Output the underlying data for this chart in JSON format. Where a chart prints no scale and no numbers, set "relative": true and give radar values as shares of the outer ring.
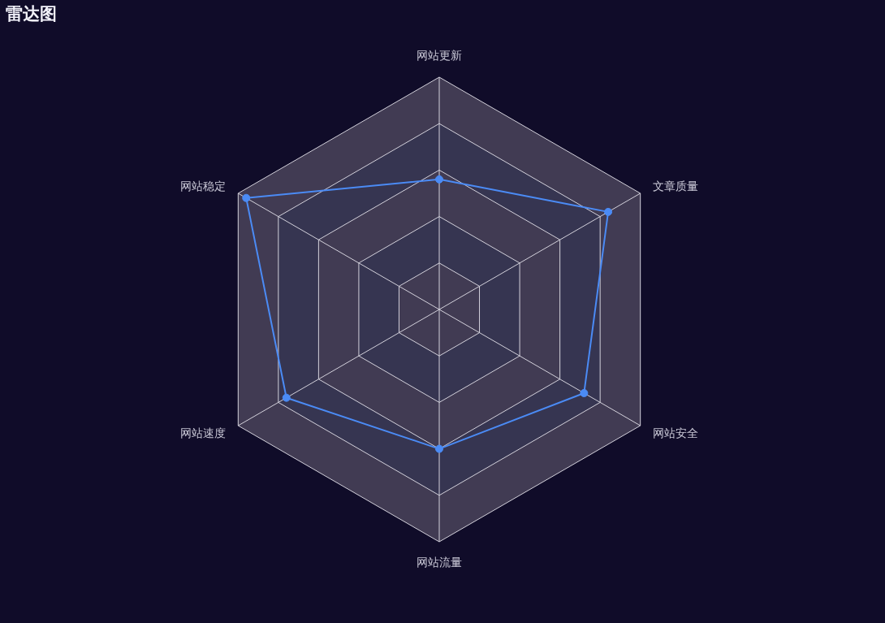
{
  "chart_data": {
    "type": "radar",
    "title": "雷达图",
    "categories": [
      "网站更新",
      "文章质量",
      "网站安全",
      "网站流量",
      "网站速度",
      "网站稳定"
    ],
    "relative": true,
    "grid": true,
    "marker": "circle",
    "line_style": "solid",
    "series": [
      {
        "color": "#4b8bf5",
        "values": [
          0.56,
          0.84,
          0.72,
          0.6,
          0.76,
          0.96
        ]
      }
    ]
  }
}
